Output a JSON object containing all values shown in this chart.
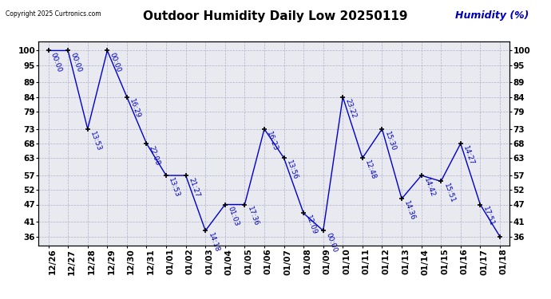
{
  "title": "Outdoor Humidity Daily Low 20250119",
  "ylabel": "Humidity (%)",
  "copyright": "Copyright 2025 Curtronics.com",
  "background_color": "#ffffff",
  "plot_bg_color": "#e8eaf0",
  "line_color": "#0000cc",
  "text_color": "#0000bb",
  "grid_color": "#aaaacc",
  "x_labels": [
    "12/26",
    "12/27",
    "12/28",
    "12/29",
    "12/30",
    "12/31",
    "01/01",
    "01/02",
    "01/03",
    "01/04",
    "01/05",
    "01/06",
    "01/07",
    "01/08",
    "01/09",
    "01/10",
    "01/11",
    "01/12",
    "01/13",
    "01/14",
    "01/15",
    "01/16",
    "01/17",
    "01/18"
  ],
  "y_values": [
    100,
    100,
    73,
    100,
    84,
    68,
    57,
    57,
    38,
    47,
    47,
    73,
    63,
    44,
    38,
    84,
    63,
    73,
    49,
    57,
    55,
    68,
    47,
    36
  ],
  "time_labels": [
    "00:00",
    "00:00",
    "13:53",
    "00:00",
    "16:29",
    "22:08",
    "13:53",
    "21:27",
    "14:18",
    "01:03",
    "17:36",
    "16:23",
    "13:56",
    "12:09",
    "00:00",
    "23:22",
    "12:48",
    "15:30",
    "14:36",
    "14:42",
    "15:51",
    "14:27",
    "17:51",
    ""
  ],
  "yticks": [
    36,
    41,
    47,
    52,
    57,
    63,
    68,
    73,
    79,
    84,
    89,
    95,
    100
  ],
  "ylim": [
    33,
    103
  ],
  "title_fontsize": 11,
  "axis_fontsize": 7.5,
  "label_fontsize": 6.5
}
